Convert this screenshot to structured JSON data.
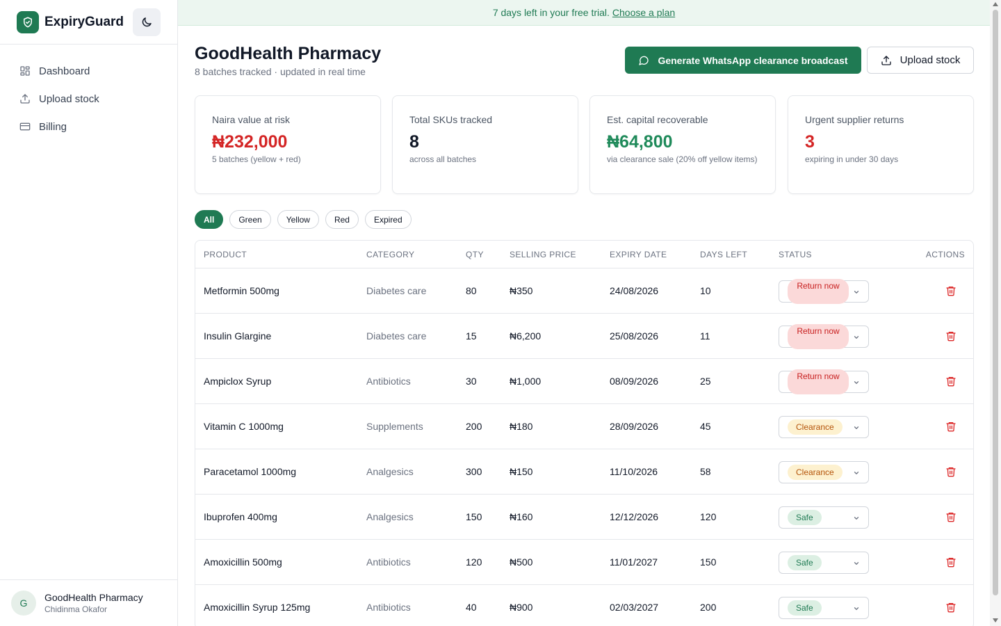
{
  "app": {
    "name": "ExpiryGuard"
  },
  "sidebar": {
    "items": [
      {
        "label": "Dashboard",
        "icon": "grid-icon"
      },
      {
        "label": "Upload stock",
        "icon": "upload-icon"
      },
      {
        "label": "Billing",
        "icon": "credit-card-icon"
      }
    ],
    "user": {
      "initial": "G",
      "name": "GoodHealth Pharmacy",
      "sub": "Chidinma Okafor"
    }
  },
  "banner": {
    "text": "7 days left in your free trial.",
    "link": "Choose a plan"
  },
  "header": {
    "title": "GoodHealth Pharmacy",
    "subtitle": "8 batches tracked · updated in real time",
    "primary_button": "Generate WhatsApp clearance broadcast",
    "secondary_button": "Upload stock"
  },
  "cards": [
    {
      "label": "Naira value at risk",
      "value": "₦232,000",
      "note": "5 batches (yellow + red)",
      "color": "#d42525"
    },
    {
      "label": "Total SKUs tracked",
      "value": "8",
      "note": "across all batches",
      "color": "#111827"
    },
    {
      "label": "Est. capital recoverable",
      "value": "₦64,800",
      "note": "via clearance sale (20% off yellow items)",
      "color": "#1f8a5a"
    },
    {
      "label": "Urgent supplier returns",
      "value": "3",
      "note": "expiring in under 30 days",
      "color": "#d42525"
    }
  ],
  "filters": [
    "All",
    "Green",
    "Yellow",
    "Red",
    "Expired"
  ],
  "table": {
    "headers": [
      "PRODUCT",
      "CATEGORY",
      "QTY",
      "SELLING PRICE",
      "EXPIRY DATE",
      "DAYS LEFT",
      "STATUS",
      "ACTIONS"
    ],
    "rows": [
      {
        "product": "Metformin 500mg",
        "category": "Diabetes care",
        "qty": "80",
        "price": "₦350",
        "expiry": "24/08/2026",
        "days": "10",
        "status": "Return now",
        "status_type": "return"
      },
      {
        "product": "Insulin Glargine",
        "category": "Diabetes care",
        "qty": "15",
        "price": "₦6,200",
        "expiry": "25/08/2026",
        "days": "11",
        "status": "Return now",
        "status_type": "return"
      },
      {
        "product": "Ampiclox Syrup",
        "category": "Antibiotics",
        "qty": "30",
        "price": "₦1,000",
        "expiry": "08/09/2026",
        "days": "25",
        "status": "Return now",
        "status_type": "return"
      },
      {
        "product": "Vitamin C 1000mg",
        "category": "Supplements",
        "qty": "200",
        "price": "₦180",
        "expiry": "28/09/2026",
        "days": "45",
        "status": "Clearance",
        "status_type": "clearance"
      },
      {
        "product": "Paracetamol 1000mg",
        "category": "Analgesics",
        "qty": "300",
        "price": "₦150",
        "expiry": "11/10/2026",
        "days": "58",
        "status": "Clearance",
        "status_type": "clearance"
      },
      {
        "product": "Ibuprofen 400mg",
        "category": "Analgesics",
        "qty": "150",
        "price": "₦160",
        "expiry": "12/12/2026",
        "days": "120",
        "status": "Safe",
        "status_type": "safe"
      },
      {
        "product": "Amoxicillin 500mg",
        "category": "Antibiotics",
        "qty": "120",
        "price": "₦500",
        "expiry": "11/01/2027",
        "days": "150",
        "status": "Safe",
        "status_type": "safe"
      },
      {
        "product": "Amoxicillin Syrup 125mg",
        "category": "Antibiotics",
        "qty": "40",
        "price": "₦900",
        "expiry": "02/03/2027",
        "days": "200",
        "status": "Safe",
        "status_type": "safe"
      }
    ]
  },
  "colors": {
    "brand": "#1f7a53",
    "danger": "#d42525",
    "warning": "#b45309"
  }
}
